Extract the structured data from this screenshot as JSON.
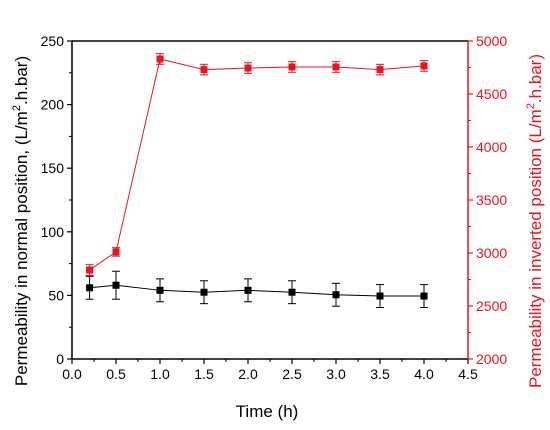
{
  "chart_data": {
    "type": "line",
    "x": [
      0.2,
      0.5,
      1.0,
      1.5,
      2.0,
      2.5,
      3.0,
      3.5,
      4.0
    ],
    "xlabel": "Time (h)",
    "xlim": [
      0.0,
      4.5
    ],
    "xticks": [
      "0.0",
      "0.5",
      "1.0",
      "1.5",
      "2.0",
      "2.5",
      "3.0",
      "3.5",
      "4.0",
      "4.5"
    ],
    "ylabel_left": {
      "pre": "Permeability in normal position, (L/m",
      "sup": "2",
      "post": ".h.bar)"
    },
    "ylabel_right": {
      "pre": "Permeability in inverted position (L/m",
      "sup": "2",
      "post": ".h.bar)"
    },
    "ylim_left": [
      0,
      250
    ],
    "ylim_right": [
      2000,
      5000
    ],
    "yticks_left": [
      "0",
      "50",
      "100",
      "150",
      "200",
      "250"
    ],
    "yticks_right": [
      "2000",
      "2500",
      "3000",
      "3500",
      "4000",
      "4500",
      "5000"
    ],
    "grid": false,
    "series": [
      {
        "axis": "left",
        "color": "#000000",
        "marker": "square",
        "values": [
          56,
          58,
          54,
          52.5,
          54,
          52.5,
          50.5,
          49.5,
          49.5
        ],
        "errors": [
          9,
          11,
          9,
          9,
          9,
          9,
          9,
          9,
          9
        ]
      },
      {
        "axis": "right",
        "color": "#e8141c",
        "marker": "square",
        "values": [
          2840,
          3010,
          4830,
          4730,
          4745,
          4755,
          4755,
          4730,
          4765
        ],
        "errors": [
          50,
          40,
          50,
          50,
          50,
          50,
          50,
          50,
          50
        ]
      }
    ]
  }
}
